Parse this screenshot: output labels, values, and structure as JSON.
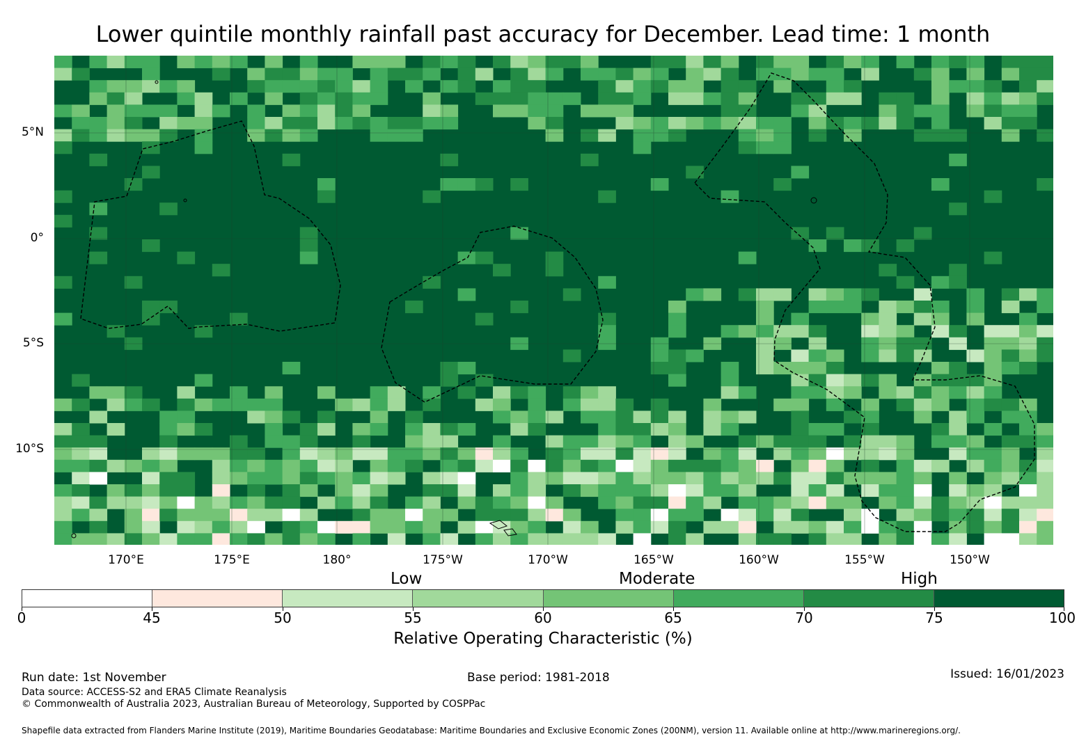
{
  "title": "Lower quintile monthly rainfall past accuracy for December. Lead time: 1 month",
  "map": {
    "lat_labels": [
      "5°N",
      "0°",
      "5°S",
      "10°S"
    ],
    "lon_labels": [
      "170°E",
      "175°E",
      "180°",
      "175°W",
      "170°W",
      "165°W",
      "160°W",
      "155°W",
      "150°W"
    ],
    "background_color": "#005a32"
  },
  "legend": {
    "categories": [
      "Low",
      "Moderate",
      "High"
    ],
    "ticks": [
      "0",
      "45",
      "50",
      "55",
      "60",
      "65",
      "70",
      "75",
      "100"
    ],
    "bins": [
      {
        "from": 0,
        "to": 45,
        "color": "#ffffff"
      },
      {
        "from": 45,
        "to": 50,
        "color": "#fee8de"
      },
      {
        "from": 50,
        "to": 55,
        "color": "#c7e9c0"
      },
      {
        "from": 55,
        "to": 60,
        "color": "#a1d99b"
      },
      {
        "from": 60,
        "to": 65,
        "color": "#74c476"
      },
      {
        "from": 65,
        "to": 70,
        "color": "#41ab5d"
      },
      {
        "from": 70,
        "to": 75,
        "color": "#238b45"
      },
      {
        "from": 75,
        "to": 100,
        "color": "#005a32"
      }
    ],
    "label": "Relative Operating Characteristic (%)"
  },
  "footer": {
    "run_date": "Run date: 1st November",
    "base_period": "Base period: 1981-2018",
    "issued": "Issued: 16/01/2023",
    "data_source": "Data source: ACCESS-S2 and ERA5 Climate Reanalysis",
    "copyright": "© Commonwealth of Australia 2023, Australian Bureau of Meteorology, Supported by COSPPac",
    "shapefile": "Shapefile data extracted from Flanders Marine Institute (2019), Maritime Boundaries Geodatabase: Maritime Boundaries and Exclusive Economic Zones (200NM), version 11. Available online at http://www.marineregions.org/."
  }
}
